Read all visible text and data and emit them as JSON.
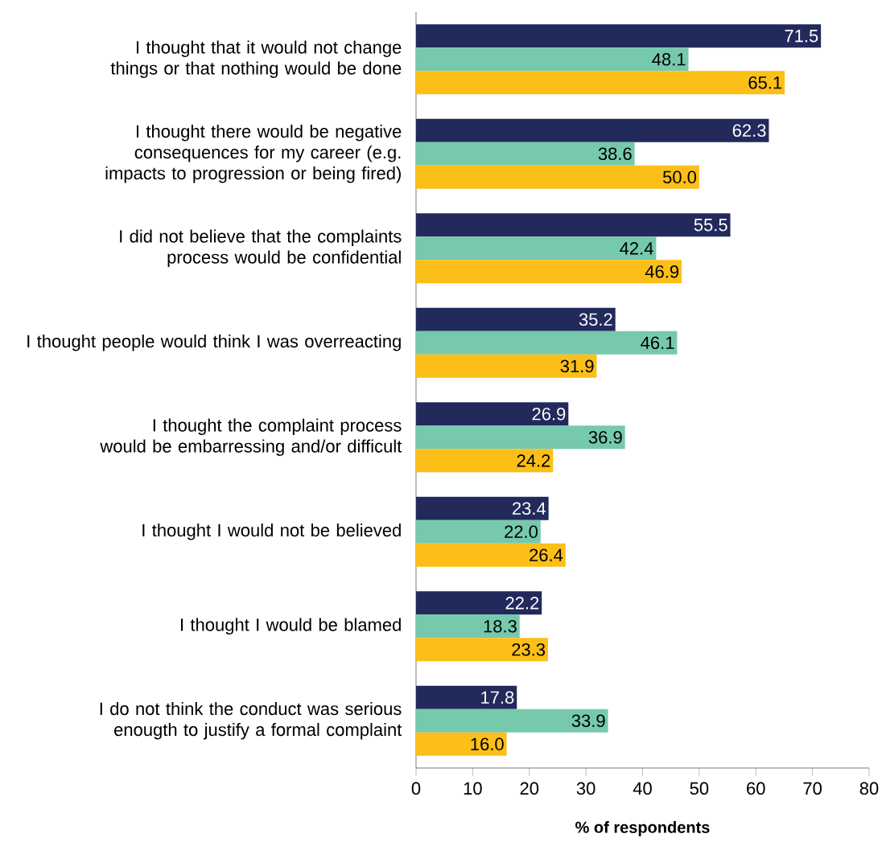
{
  "chart_data": {
    "type": "bar",
    "orientation": "horizontal",
    "xlabel": "% of respondents",
    "categories": [
      "I thought that it would not change things or that nothing would be done",
      "I thought there would be negative consequences for my career (e.g. impacts to progression or being fired)",
      "I did not believe that the complaints process would be confidential",
      "I thought people would think I was overreacting",
      "I thought the complaint process would be embarressing and/or difficult",
      "I thought I would not be believed",
      "I thought I would be blamed",
      "I do not think the conduct was serious enougth to justify a formal complaint"
    ],
    "series": [
      {
        "color": "#222a5c",
        "values": [
          71.5,
          62.3,
          55.5,
          35.2,
          26.9,
          23.4,
          22.2,
          17.8
        ],
        "value_labels": [
          "71.5",
          "62.3",
          "55.5",
          "35.2",
          "26.9",
          "23.4",
          "22.2",
          "17.8"
        ]
      },
      {
        "color": "#76c9ad",
        "values": [
          48.1,
          38.6,
          42.4,
          46.1,
          36.9,
          22.0,
          18.3,
          33.9
        ],
        "value_labels": [
          "48.1",
          "38.6",
          "42.4",
          "46.1",
          "36.9",
          "22.0",
          "18.3",
          "33.9"
        ]
      },
      {
        "color": "#fbbf17",
        "values": [
          65.1,
          50.0,
          46.9,
          31.9,
          24.2,
          26.4,
          23.3,
          16.0
        ],
        "value_labels": [
          "65.1",
          "50.0",
          "46.9",
          "31.9",
          "24.2",
          "26.4",
          "23.3",
          "16.0"
        ]
      }
    ],
    "xlim": [
      0,
      80
    ],
    "xticks": [
      0,
      10,
      20,
      30,
      40,
      50,
      60,
      70,
      80
    ]
  }
}
